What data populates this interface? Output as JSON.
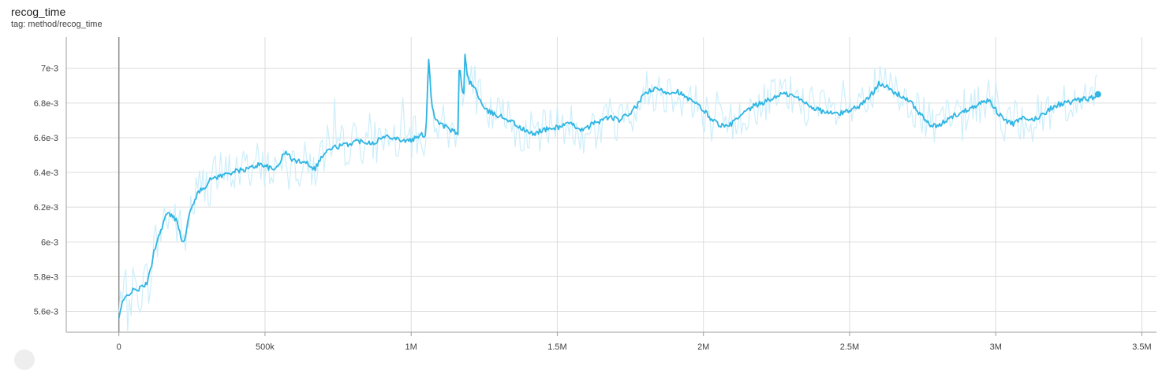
{
  "card": {
    "title": "recog_time",
    "tag": "tag: method/recog_time"
  },
  "colors": {
    "smoothed": "#2fb5e2",
    "raw": "#cdeefa",
    "grid": "#dcdcdc"
  },
  "chart_data": {
    "type": "line",
    "title": "recog_time",
    "subtitle": "tag: method/recog_time",
    "xlim": [
      -180000,
      3550000
    ],
    "ylim": [
      5.48,
      7.18
    ],
    "x_ticks": [
      0,
      500000,
      1000000,
      1500000,
      2000000,
      2500000,
      3000000,
      3500000
    ],
    "x_tick_labels": [
      "0",
      "500k",
      "1M",
      "1.5M",
      "2M",
      "2.5M",
      "3M",
      "3.5M"
    ],
    "y_ticks": [
      5.6,
      5.8,
      6.0,
      6.2,
      6.4,
      6.6,
      6.8,
      7.0
    ],
    "y_tick_labels": [
      "5.6e-3",
      "5.8e-3",
      "6e-3",
      "6.2e-3",
      "6.4e-3",
      "6.6e-3",
      "6.8e-3",
      "7e-3"
    ],
    "y_unit_scale": 0.001,
    "grid": true,
    "series": [
      {
        "role": "smoothed",
        "x": [
          0,
          10000,
          30000,
          50000,
          70000,
          90000,
          100000,
          110000,
          120000,
          130000,
          150000,
          160000,
          170000,
          180000,
          200000,
          210000,
          220000,
          230000,
          240000,
          260000,
          280000,
          300000,
          320000,
          350000,
          380000,
          410000,
          440000,
          470000,
          490000,
          510000,
          530000,
          550000,
          570000,
          590000,
          610000,
          630000,
          650000,
          670000,
          690000,
          710000,
          730000,
          750000,
          780000,
          810000,
          840000,
          870000,
          900000,
          930000,
          960000,
          990000,
          1020000,
          1040000,
          1050000,
          1060000,
          1070000,
          1080000,
          1100000,
          1120000,
          1140000,
          1160000,
          1165000,
          1170000,
          1180000,
          1185000,
          1190000,
          1200000,
          1220000,
          1240000,
          1250000,
          1280000,
          1310000,
          1340000,
          1370000,
          1400000,
          1420000,
          1440000,
          1470000,
          1500000,
          1530000,
          1560000,
          1590000,
          1620000,
          1650000,
          1680000,
          1710000,
          1740000,
          1760000,
          1780000,
          1800000,
          1840000,
          1880000,
          1910000,
          1940000,
          1970000,
          2000000,
          2020000,
          2050000,
          2080000,
          2110000,
          2140000,
          2170000,
          2200000,
          2230000,
          2260000,
          2290000,
          2320000,
          2350000,
          2380000,
          2410000,
          2440000,
          2470000,
          2500000,
          2530000,
          2560000,
          2580000,
          2600000,
          2620000,
          2650000,
          2680000,
          2710000,
          2740000,
          2770000,
          2800000,
          2830000,
          2860000,
          2890000,
          2920000,
          2950000,
          2980000,
          3000000,
          3030000,
          3060000,
          3090000,
          3120000,
          3150000,
          3180000,
          3210000,
          3240000,
          3270000,
          3300000,
          3330000,
          3350000
        ],
        "values": [
          5.56,
          5.64,
          5.7,
          5.72,
          5.73,
          5.75,
          5.78,
          5.85,
          5.95,
          6.0,
          6.1,
          6.15,
          6.16,
          6.15,
          6.12,
          6.05,
          5.99,
          6.05,
          6.15,
          6.25,
          6.3,
          6.33,
          6.37,
          6.38,
          6.4,
          6.41,
          6.42,
          6.44,
          6.45,
          6.43,
          6.41,
          6.46,
          6.52,
          6.48,
          6.46,
          6.47,
          6.45,
          6.42,
          6.48,
          6.52,
          6.54,
          6.55,
          6.56,
          6.58,
          6.58,
          6.57,
          6.6,
          6.61,
          6.59,
          6.58,
          6.6,
          6.62,
          6.61,
          7.06,
          6.8,
          6.72,
          6.68,
          6.66,
          6.64,
          6.62,
          7.06,
          6.92,
          6.85,
          7.12,
          6.98,
          6.92,
          6.88,
          6.8,
          6.76,
          6.74,
          6.72,
          6.7,
          6.66,
          6.63,
          6.62,
          6.64,
          6.65,
          6.66,
          6.68,
          6.67,
          6.64,
          6.68,
          6.7,
          6.72,
          6.7,
          6.73,
          6.76,
          6.8,
          6.86,
          6.88,
          6.86,
          6.87,
          6.83,
          6.8,
          6.76,
          6.72,
          6.68,
          6.66,
          6.7,
          6.74,
          6.78,
          6.8,
          6.82,
          6.85,
          6.85,
          6.83,
          6.8,
          6.77,
          6.75,
          6.74,
          6.74,
          6.76,
          6.78,
          6.82,
          6.86,
          6.92,
          6.9,
          6.86,
          6.84,
          6.8,
          6.74,
          6.68,
          6.66,
          6.7,
          6.73,
          6.75,
          6.78,
          6.8,
          6.82,
          6.76,
          6.7,
          6.68,
          6.71,
          6.7,
          6.72,
          6.76,
          6.79,
          6.8,
          6.81,
          6.82,
          6.83,
          6.85
        ]
      }
    ]
  }
}
